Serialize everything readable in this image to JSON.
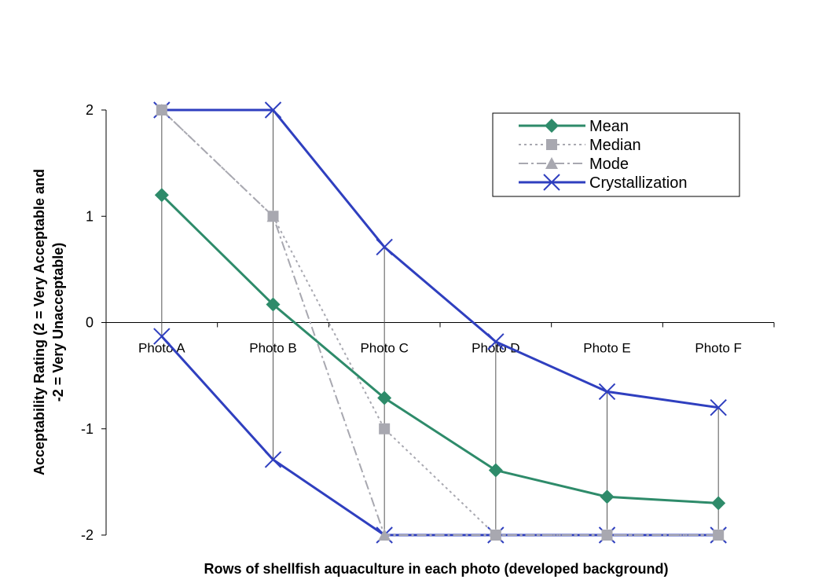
{
  "chart_data": {
    "type": "line",
    "categories": [
      "Photo A",
      "Photo B",
      "Photo C",
      "Photo D",
      "Photo E",
      "Photo F"
    ],
    "xlabel": "Rows of shellfish aquaculture in each photo (developed background)",
    "ylabel": "Acceptability Rating (2 = Very Acceptable and -2 = Very Unacceptable)",
    "ylim": [
      -2,
      2
    ],
    "yticks": [
      "2",
      "1",
      "0",
      "-1",
      "-2"
    ],
    "grid": false,
    "legend_position": "top-right",
    "series": [
      {
        "name": "Mean",
        "values": [
          1.2,
          0.17,
          -0.71,
          -1.39,
          -1.64,
          -1.7
        ],
        "color": "#2e8b6a",
        "marker": "diamond",
        "style": "solid"
      },
      {
        "name": "Median",
        "values": [
          2,
          1,
          -1,
          -2,
          -2,
          -2
        ],
        "color": "#a8a8b0",
        "marker": "square",
        "style": "dotted"
      },
      {
        "name": "Mode",
        "values": [
          2,
          1,
          -2,
          -2,
          -2,
          -2
        ],
        "color": "#a8a8b0",
        "marker": "triangle",
        "style": "dashdot"
      },
      {
        "name": "Crystallization",
        "upper": [
          2,
          2,
          0.71,
          -0.18,
          -0.65,
          -0.8
        ],
        "lower": [
          -0.13,
          -1.29,
          -2,
          -2,
          -2,
          -2
        ],
        "color": "#2f3fbf",
        "marker": "x",
        "style": "solid"
      }
    ]
  }
}
